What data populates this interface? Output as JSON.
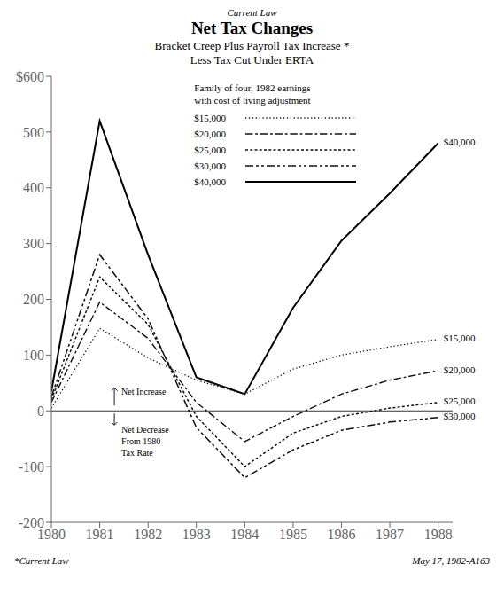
{
  "chart_data": {
    "type": "line",
    "supertitle": "Current Law",
    "title": "Net Tax Changes",
    "subtitle": "Bracket Creep Plus Payroll Tax Increase *\nLess Tax Cut Under ERTA",
    "footnote": "*Current Law",
    "source": "May 17, 1982-A163",
    "x": [
      1980,
      1981,
      1982,
      1983,
      1984,
      1985,
      1986,
      1987,
      1988
    ],
    "xlim": [
      1980,
      1988.3
    ],
    "xticks": [
      1980,
      1981,
      1982,
      1983,
      1984,
      1985,
      1986,
      1987,
      1988
    ],
    "ylim": [
      -200,
      600
    ],
    "yticks": [
      -200,
      -100,
      0,
      100,
      200,
      300,
      400,
      500,
      {
        "value": 600,
        "label": "$600"
      }
    ],
    "grid": false,
    "legend": "upper right",
    "legend_title": "Family of four, 1982 earnings\nwith cost of living adjustment",
    "reference_lines": [
      0
    ],
    "annotations": [
      {
        "text": "Net Increase",
        "arrow": "up"
      },
      {
        "text": "Net Decrease\nFrom 1980\nTax Rate",
        "arrow": "down"
      }
    ],
    "series": [
      {
        "name": "$15,000",
        "color": "#111111",
        "line_style": "dotted",
        "values": [
          5,
          148,
          95,
          55,
          30,
          75,
          100,
          115,
          128
        ]
      },
      {
        "name": "$20,000",
        "color": "#111111",
        "line_style": "dash-dot",
        "values": [
          15,
          195,
          130,
          15,
          -55,
          -10,
          30,
          55,
          72
        ]
      },
      {
        "name": "$25,000",
        "color": "#111111",
        "line_style": "dense-dotted",
        "values": [
          20,
          240,
          155,
          -10,
          -100,
          -40,
          -10,
          5,
          15
        ]
      },
      {
        "name": "$30,000",
        "color": "#111111",
        "line_style": "dash-dot-dot",
        "values": [
          25,
          280,
          165,
          -30,
          -120,
          -70,
          -35,
          -20,
          -12
        ]
      },
      {
        "name": "$40,000",
        "color": "#000000",
        "line_style": "solid",
        "values": [
          35,
          520,
          280,
          60,
          30,
          185,
          305,
          390,
          480
        ]
      }
    ]
  }
}
